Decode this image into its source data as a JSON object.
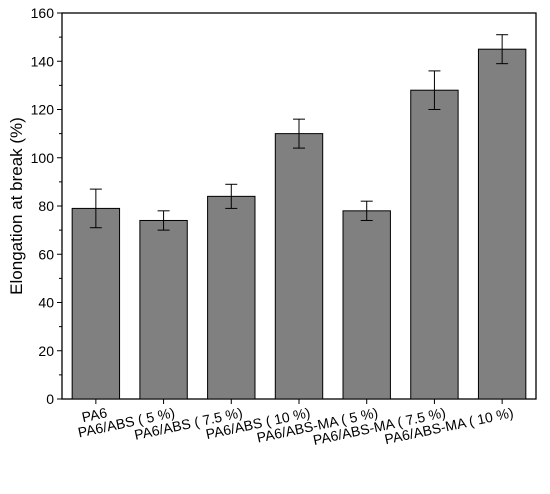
{
  "chart_data": {
    "type": "bar",
    "title": "",
    "xlabel": "",
    "ylabel": "Elongation at break (%)",
    "ylim": [
      0,
      160
    ],
    "yticks": [
      0,
      20,
      40,
      60,
      80,
      100,
      120,
      140,
      160
    ],
    "categories": [
      "PA6",
      "PA6/ABS ( 5 %)",
      "PA6/ABS ( 7.5 %)",
      "PA6/ABS ( 10 %)",
      "PA6/ABS-MA ( 5 %)",
      "PA6/ABS-MA ( 7.5 %)",
      "PA6/ABS-MA ( 10 %)"
    ],
    "values": [
      79,
      74,
      84,
      110,
      78,
      128,
      145
    ],
    "errors": [
      8,
      4,
      5,
      6,
      4,
      8,
      6
    ],
    "bar_color": "#808080",
    "grid": false,
    "legend": "none"
  }
}
